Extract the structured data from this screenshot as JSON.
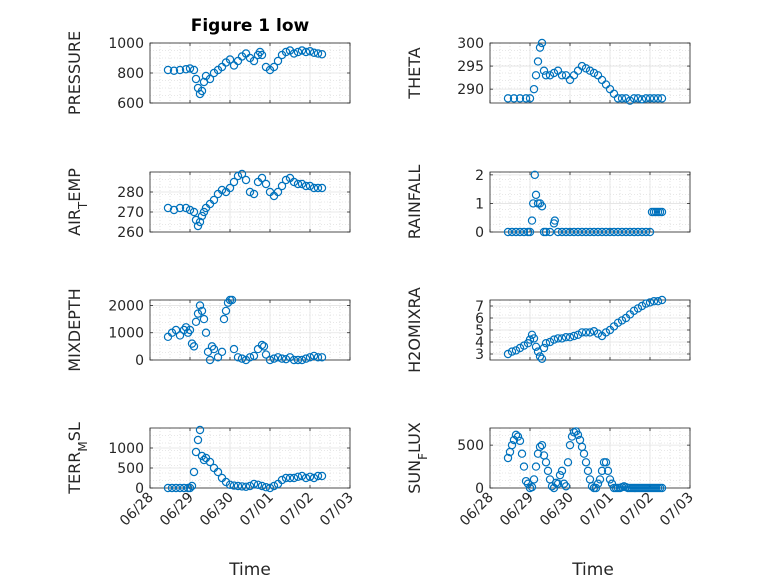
{
  "figure": {
    "title": "Figure 1 low",
    "xlabel": "Time",
    "marker_color": "#0072BD"
  },
  "chart_data": [
    {
      "type": "scatter",
      "ylabel": "PRESSURE",
      "xlim": [
        0,
        5
      ],
      "ylim": [
        600,
        1000
      ],
      "yticks": [
        600,
        800,
        1000
      ],
      "xticks": [
        0,
        1,
        2,
        3,
        4,
        5
      ],
      "xticklabels": [
        "06/28",
        "06/29",
        "06/30",
        "07/01",
        "07/02",
        "07/03"
      ],
      "grid": true,
      "x": [
        0.45,
        0.6,
        0.75,
        0.9,
        1.0,
        1.1,
        1.15,
        1.2,
        1.25,
        1.3,
        1.35,
        1.4,
        1.5,
        1.6,
        1.7,
        1.8,
        1.9,
        2.0,
        2.1,
        2.2,
        2.3,
        2.4,
        2.5,
        2.6,
        2.7,
        2.75,
        2.8,
        2.9,
        3.0,
        3.1,
        3.2,
        3.3,
        3.4,
        3.5,
        3.6,
        3.7,
        3.8,
        3.9,
        4.0,
        4.1,
        4.2,
        4.3
      ],
      "y": [
        820,
        815,
        820,
        825,
        830,
        820,
        760,
        700,
        660,
        680,
        740,
        780,
        760,
        800,
        820,
        840,
        870,
        890,
        850,
        880,
        910,
        930,
        900,
        880,
        920,
        940,
        920,
        840,
        820,
        840,
        880,
        920,
        940,
        950,
        930,
        940,
        950,
        940,
        945,
        935,
        930,
        925
      ]
    },
    {
      "type": "scatter",
      "ylabel": "THETA",
      "xlim": [
        0,
        5
      ],
      "ylim": [
        287,
        300
      ],
      "yticks": [
        290,
        295,
        300
      ],
      "xticks": [
        0,
        1,
        2,
        3,
        4,
        5
      ],
      "xticklabels": [
        "06/28",
        "06/29",
        "06/30",
        "07/01",
        "07/02",
        "07/03"
      ],
      "grid": true,
      "x": [
        0.45,
        0.6,
        0.75,
        0.9,
        1.0,
        1.1,
        1.15,
        1.2,
        1.25,
        1.3,
        1.35,
        1.4,
        1.5,
        1.6,
        1.7,
        1.8,
        1.9,
        2.0,
        2.1,
        2.2,
        2.3,
        2.4,
        2.5,
        2.6,
        2.7,
        2.8,
        2.9,
        3.0,
        3.1,
        3.2,
        3.3,
        3.4,
        3.5,
        3.6,
        3.7,
        3.8,
        3.9,
        4.0,
        4.1,
        4.2,
        4.3
      ],
      "y": [
        288,
        288,
        288,
        288,
        288,
        290,
        293,
        296,
        299,
        300,
        294,
        293,
        293,
        293.5,
        294,
        293,
        293,
        292,
        293,
        294,
        295,
        294.5,
        294,
        293.5,
        293,
        292,
        291,
        290,
        289,
        288,
        288,
        288,
        287.5,
        288,
        288,
        287.8,
        288,
        288,
        288,
        288,
        288
      ]
    },
    {
      "type": "scatter",
      "ylabel": "AIR_TEMP",
      "xlim": [
        0,
        5
      ],
      "ylim": [
        260,
        290
      ],
      "yticks": [
        260,
        270,
        280
      ],
      "xticks": [
        0,
        1,
        2,
        3,
        4,
        5
      ],
      "xticklabels": [
        "06/28",
        "06/29",
        "06/30",
        "07/01",
        "07/02",
        "07/03"
      ],
      "grid": true,
      "x": [
        0.45,
        0.6,
        0.75,
        0.9,
        1.0,
        1.1,
        1.15,
        1.2,
        1.25,
        1.3,
        1.35,
        1.4,
        1.5,
        1.6,
        1.7,
        1.8,
        1.9,
        2.0,
        2.1,
        2.2,
        2.3,
        2.4,
        2.5,
        2.6,
        2.7,
        2.8,
        2.9,
        3.0,
        3.1,
        3.2,
        3.3,
        3.4,
        3.5,
        3.6,
        3.7,
        3.8,
        3.9,
        4.0,
        4.1,
        4.2,
        4.3
      ],
      "y": [
        272,
        271,
        272,
        272,
        271,
        270,
        266,
        263,
        265,
        268,
        270,
        272,
        274,
        276,
        279,
        281,
        280,
        282,
        285,
        288,
        289,
        286,
        280,
        279,
        285,
        287,
        284,
        280,
        278,
        280,
        283,
        286,
        287,
        285,
        284,
        284,
        283,
        283,
        282,
        282,
        282
      ]
    },
    {
      "type": "scatter",
      "ylabel": "RAINFALL",
      "xlim": [
        0,
        5
      ],
      "ylim": [
        0,
        2.1
      ],
      "yticks": [
        0,
        1,
        2
      ],
      "xticks": [
        0,
        1,
        2,
        3,
        4,
        5
      ],
      "xticklabels": [
        "06/28",
        "06/29",
        "06/30",
        "07/01",
        "07/02",
        "07/03"
      ],
      "grid": true,
      "x": [
        0.45,
        0.55,
        0.65,
        0.75,
        0.85,
        0.95,
        1.0,
        1.05,
        1.08,
        1.12,
        1.15,
        1.2,
        1.25,
        1.3,
        1.35,
        1.4,
        1.5,
        1.6,
        1.62,
        1.7,
        1.8,
        1.9,
        2.0,
        2.1,
        2.2,
        2.3,
        2.4,
        2.5,
        2.6,
        2.7,
        2.8,
        2.9,
        3.0,
        3.1,
        3.2,
        3.3,
        3.4,
        3.5,
        3.6,
        3.7,
        3.8,
        3.9,
        4.0,
        4.05,
        4.1,
        4.15,
        4.2,
        4.25,
        4.3
      ],
      "y": [
        0,
        0,
        0,
        0,
        0,
        0,
        0,
        0.4,
        1.0,
        2.0,
        1.3,
        1.0,
        1.0,
        0.9,
        0,
        0,
        0,
        0.3,
        0.4,
        0,
        0,
        0,
        0,
        0,
        0,
        0,
        0,
        0,
        0,
        0,
        0,
        0,
        0,
        0,
        0,
        0,
        0,
        0,
        0,
        0,
        0,
        0,
        0,
        0.7,
        0.7,
        0.7,
        0.7,
        0.7,
        0.7
      ]
    },
    {
      "type": "scatter",
      "ylabel": "MIXDEPTH",
      "xlim": [
        0,
        5
      ],
      "ylim": [
        0,
        2200
      ],
      "yticks": [
        0,
        1000,
        2000
      ],
      "xticks": [
        0,
        1,
        2,
        3,
        4,
        5
      ],
      "xticklabels": [
        "06/28",
        "06/29",
        "06/30",
        "07/01",
        "07/02",
        "07/03"
      ],
      "grid": true,
      "x": [
        0.45,
        0.55,
        0.65,
        0.75,
        0.85,
        0.9,
        0.95,
        1.0,
        1.05,
        1.1,
        1.15,
        1.2,
        1.25,
        1.3,
        1.35,
        1.4,
        1.45,
        1.5,
        1.55,
        1.6,
        1.7,
        1.8,
        1.85,
        1.9,
        1.95,
        2.0,
        2.05,
        2.1,
        2.2,
        2.3,
        2.4,
        2.5,
        2.6,
        2.7,
        2.8,
        2.85,
        2.9,
        3.0,
        3.1,
        3.2,
        3.3,
        3.4,
        3.5,
        3.6,
        3.7,
        3.8,
        3.9,
        4.0,
        4.1,
        4.2,
        4.3
      ],
      "y": [
        850,
        1000,
        1100,
        900,
        1100,
        1200,
        1000,
        1100,
        600,
        500,
        1400,
        1700,
        2000,
        1800,
        1500,
        1000,
        300,
        0,
        500,
        400,
        100,
        300,
        1500,
        1800,
        2100,
        2200,
        2200,
        400,
        100,
        50,
        0,
        100,
        150,
        400,
        550,
        500,
        200,
        0,
        50,
        100,
        50,
        30,
        100,
        0,
        0,
        0,
        50,
        100,
        150,
        100,
        100
      ]
    },
    {
      "type": "scatter",
      "ylabel": "H2OMIXRA",
      "xlim": [
        0,
        5
      ],
      "ylim": [
        2.5,
        7.5
      ],
      "yticks": [
        3,
        4,
        5,
        6,
        7
      ],
      "xticks": [
        0,
        1,
        2,
        3,
        4,
        5
      ],
      "xticklabels": [
        "06/28",
        "06/29",
        "06/30",
        "07/01",
        "07/02",
        "07/03"
      ],
      "grid": true,
      "x": [
        0.45,
        0.55,
        0.65,
        0.75,
        0.85,
        0.95,
        1.0,
        1.05,
        1.1,
        1.15,
        1.2,
        1.25,
        1.3,
        1.35,
        1.4,
        1.5,
        1.6,
        1.7,
        1.8,
        1.9,
        2.0,
        2.1,
        2.2,
        2.3,
        2.4,
        2.5,
        2.6,
        2.7,
        2.8,
        2.9,
        3.0,
        3.1,
        3.2,
        3.3,
        3.4,
        3.5,
        3.6,
        3.7,
        3.8,
        3.9,
        4.0,
        4.1,
        4.2,
        4.3
      ],
      "y": [
        3,
        3.2,
        3.3,
        3.5,
        3.7,
        3.9,
        4.2,
        4.6,
        4.3,
        3.6,
        3.2,
        2.8,
        2.6,
        3.5,
        3.9,
        4.0,
        4.2,
        4.3,
        4.3,
        4.4,
        4.4,
        4.5,
        4.6,
        4.8,
        4.8,
        4.8,
        4.9,
        4.7,
        4.5,
        4.8,
        5.0,
        5.3,
        5.6,
        5.8,
        6.0,
        6.3,
        6.6,
        6.8,
        7.0,
        7.2,
        7.3,
        7.4,
        7.4,
        7.5
      ]
    },
    {
      "type": "scatter",
      "ylabel": "TERR_MSL",
      "xlim": [
        0,
        5
      ],
      "ylim": [
        0,
        1500
      ],
      "yticks": [
        0,
        500,
        1000
      ],
      "xticks": [
        0,
        1,
        2,
        3,
        4,
        5
      ],
      "xticklabels": [
        "06/28",
        "06/29",
        "06/30",
        "07/01",
        "07/02",
        "07/03"
      ],
      "grid": true,
      "x": [
        0.45,
        0.55,
        0.65,
        0.75,
        0.85,
        0.95,
        1.0,
        1.05,
        1.1,
        1.15,
        1.2,
        1.25,
        1.3,
        1.35,
        1.4,
        1.5,
        1.6,
        1.7,
        1.8,
        1.9,
        2.0,
        2.1,
        2.2,
        2.3,
        2.4,
        2.5,
        2.6,
        2.7,
        2.8,
        2.9,
        3.0,
        3.1,
        3.2,
        3.3,
        3.4,
        3.5,
        3.6,
        3.7,
        3.8,
        3.9,
        4.0,
        4.1,
        4.2,
        4.3
      ],
      "y": [
        0,
        0,
        0,
        0,
        0,
        0,
        0,
        50,
        400,
        900,
        1200,
        1450,
        800,
        700,
        750,
        650,
        500,
        400,
        250,
        150,
        80,
        60,
        50,
        40,
        30,
        50,
        100,
        80,
        50,
        20,
        0,
        50,
        100,
        200,
        250,
        250,
        250,
        280,
        300,
        250,
        280,
        250,
        300,
        300
      ]
    },
    {
      "type": "scatter",
      "ylabel": "SUN_FLUX",
      "xlim": [
        0,
        5
      ],
      "ylim": [
        0,
        700
      ],
      "yticks": [
        0,
        500
      ],
      "xticks": [
        0,
        1,
        2,
        3,
        4,
        5
      ],
      "xticklabels": [
        "06/28",
        "06/29",
        "06/30",
        "07/01",
        "07/02",
        "07/03"
      ],
      "grid": true,
      "x": [
        0.45,
        0.5,
        0.55,
        0.6,
        0.65,
        0.7,
        0.75,
        0.8,
        0.85,
        0.9,
        0.95,
        1.0,
        1.05,
        1.1,
        1.15,
        1.2,
        1.25,
        1.3,
        1.35,
        1.4,
        1.45,
        1.5,
        1.55,
        1.6,
        1.65,
        1.7,
        1.75,
        1.8,
        1.85,
        1.9,
        1.95,
        2.0,
        2.05,
        2.1,
        2.15,
        2.2,
        2.25,
        2.3,
        2.35,
        2.4,
        2.45,
        2.5,
        2.55,
        2.6,
        2.65,
        2.7,
        2.75,
        2.8,
        2.85,
        2.9,
        2.95,
        3.0,
        3.05,
        3.1,
        3.15,
        3.2,
        3.25,
        3.3,
        3.35,
        3.4,
        3.45,
        3.5,
        3.55,
        3.6,
        3.65,
        3.7,
        3.75,
        3.8,
        3.85,
        3.9,
        3.95,
        4.0,
        4.05,
        4.1,
        4.15,
        4.2,
        4.25,
        4.3
      ],
      "y": [
        350,
        420,
        500,
        560,
        620,
        600,
        550,
        400,
        250,
        80,
        50,
        0,
        10,
        100,
        250,
        400,
        480,
        500,
        380,
        300,
        200,
        100,
        20,
        0,
        60,
        50,
        150,
        200,
        50,
        20,
        300,
        500,
        600,
        650,
        660,
        620,
        560,
        480,
        400,
        300,
        200,
        100,
        20,
        0,
        0,
        50,
        100,
        200,
        300,
        300,
        200,
        100,
        50,
        0,
        0,
        0,
        0,
        10,
        20,
        10,
        0,
        0,
        0,
        0,
        0,
        0,
        0,
        0,
        0,
        0,
        0,
        0,
        0,
        0,
        0,
        0,
        0,
        0
      ]
    }
  ]
}
